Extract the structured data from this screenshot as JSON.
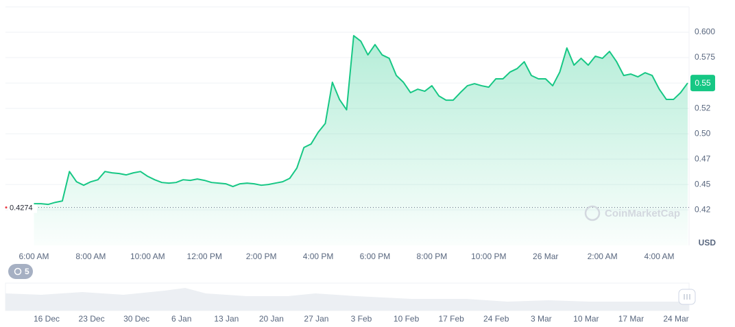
{
  "chart_data": {
    "type": "line",
    "categories": [
      null,
      null,
      null,
      null,
      "6:00 AM",
      null,
      null,
      null,
      null,
      null,
      null,
      null,
      "8:00 AM",
      null,
      null,
      null,
      null,
      null,
      null,
      null,
      "10:00 AM",
      null,
      null,
      null,
      null,
      null,
      null,
      null,
      "12:00 PM",
      null,
      null,
      null,
      null,
      null,
      null,
      null,
      "2:00 PM",
      null,
      null,
      null,
      null,
      null,
      null,
      null,
      "4:00 PM",
      null,
      null,
      null,
      null,
      null,
      null,
      null,
      "6:00 PM",
      null,
      null,
      null,
      null,
      null,
      null,
      null,
      "8:00 PM",
      null,
      null,
      null,
      null,
      null,
      null,
      null,
      "10:00 PM",
      null,
      null,
      null,
      null,
      null,
      null,
      null,
      "26 Mar",
      null,
      null,
      null,
      null,
      null,
      null,
      null,
      "2:00 AM",
      null,
      null,
      null,
      null,
      null,
      null,
      null,
      "4:00 AM",
      null,
      null,
      null,
      null
    ],
    "series": [
      {
        "color": "#16c784",
        "values": [
          null,
          null,
          null,
          null,
          0.4311,
          0.4311,
          0.4304,
          0.4324,
          0.4338,
          0.4628,
          0.4527,
          0.4493,
          0.4527,
          0.4547,
          0.4628,
          0.4615,
          0.4608,
          0.4595,
          0.4615,
          0.4628,
          0.4581,
          0.4547,
          0.452,
          0.4514,
          0.452,
          0.4547,
          0.4541,
          0.4554,
          0.4541,
          0.452,
          0.4514,
          0.4507,
          0.448,
          0.4507,
          0.4514,
          0.4507,
          0.4493,
          0.45,
          0.4514,
          0.4527,
          0.4561,
          0.4662,
          0.4865,
          0.4899,
          0.5014,
          0.5101,
          0.5507,
          0.5338,
          0.5236,
          0.5966,
          0.5912,
          0.5777,
          0.5878,
          0.5777,
          0.5743,
          0.5574,
          0.5507,
          0.5405,
          0.5439,
          0.5419,
          0.5473,
          0.5372,
          0.5331,
          0.5331,
          0.5405,
          0.5473,
          0.5493,
          0.5473,
          0.5459,
          0.5541,
          0.5541,
          0.5608,
          0.5642,
          0.5709,
          0.5574,
          0.5541,
          0.5541,
          0.5473,
          0.5608,
          0.5845,
          0.5676,
          0.5743,
          0.5676,
          0.5764,
          0.5743,
          0.5811,
          0.5709,
          0.5574,
          0.5588,
          0.5561,
          0.5601,
          0.5574,
          0.5439,
          0.5338,
          0.5338,
          0.5405,
          0.55
        ]
      }
    ],
    "ylim": [
      0.39,
      0.625
    ],
    "yticks": [
      {
        "value": 0.6,
        "label": "0.600"
      },
      0.575,
      0.55,
      {
        "value": 0.525,
        "label": "0.52"
      },
      {
        "value": 0.5,
        "label": "0.50"
      },
      {
        "value": 0.475,
        "label": "0.47"
      },
      0.45,
      {
        "value": 0.425,
        "label": "0.42"
      }
    ],
    "grid": true,
    "open_price": 0.4274,
    "last_price_label": "0.55",
    "currency_label": "USD",
    "watermark": "CoinMarketCap",
    "navigator": {
      "badge": "5",
      "dates": [
        "16 Dec",
        "23 Dec",
        "30 Dec",
        "6 Jan",
        "13 Jan",
        "20 Jan",
        "27 Jan",
        "3 Feb",
        "10 Feb",
        "17 Feb",
        "24 Feb",
        "3 Mar",
        "10 Mar",
        "17 Mar",
        "24 Mar"
      ]
    }
  }
}
